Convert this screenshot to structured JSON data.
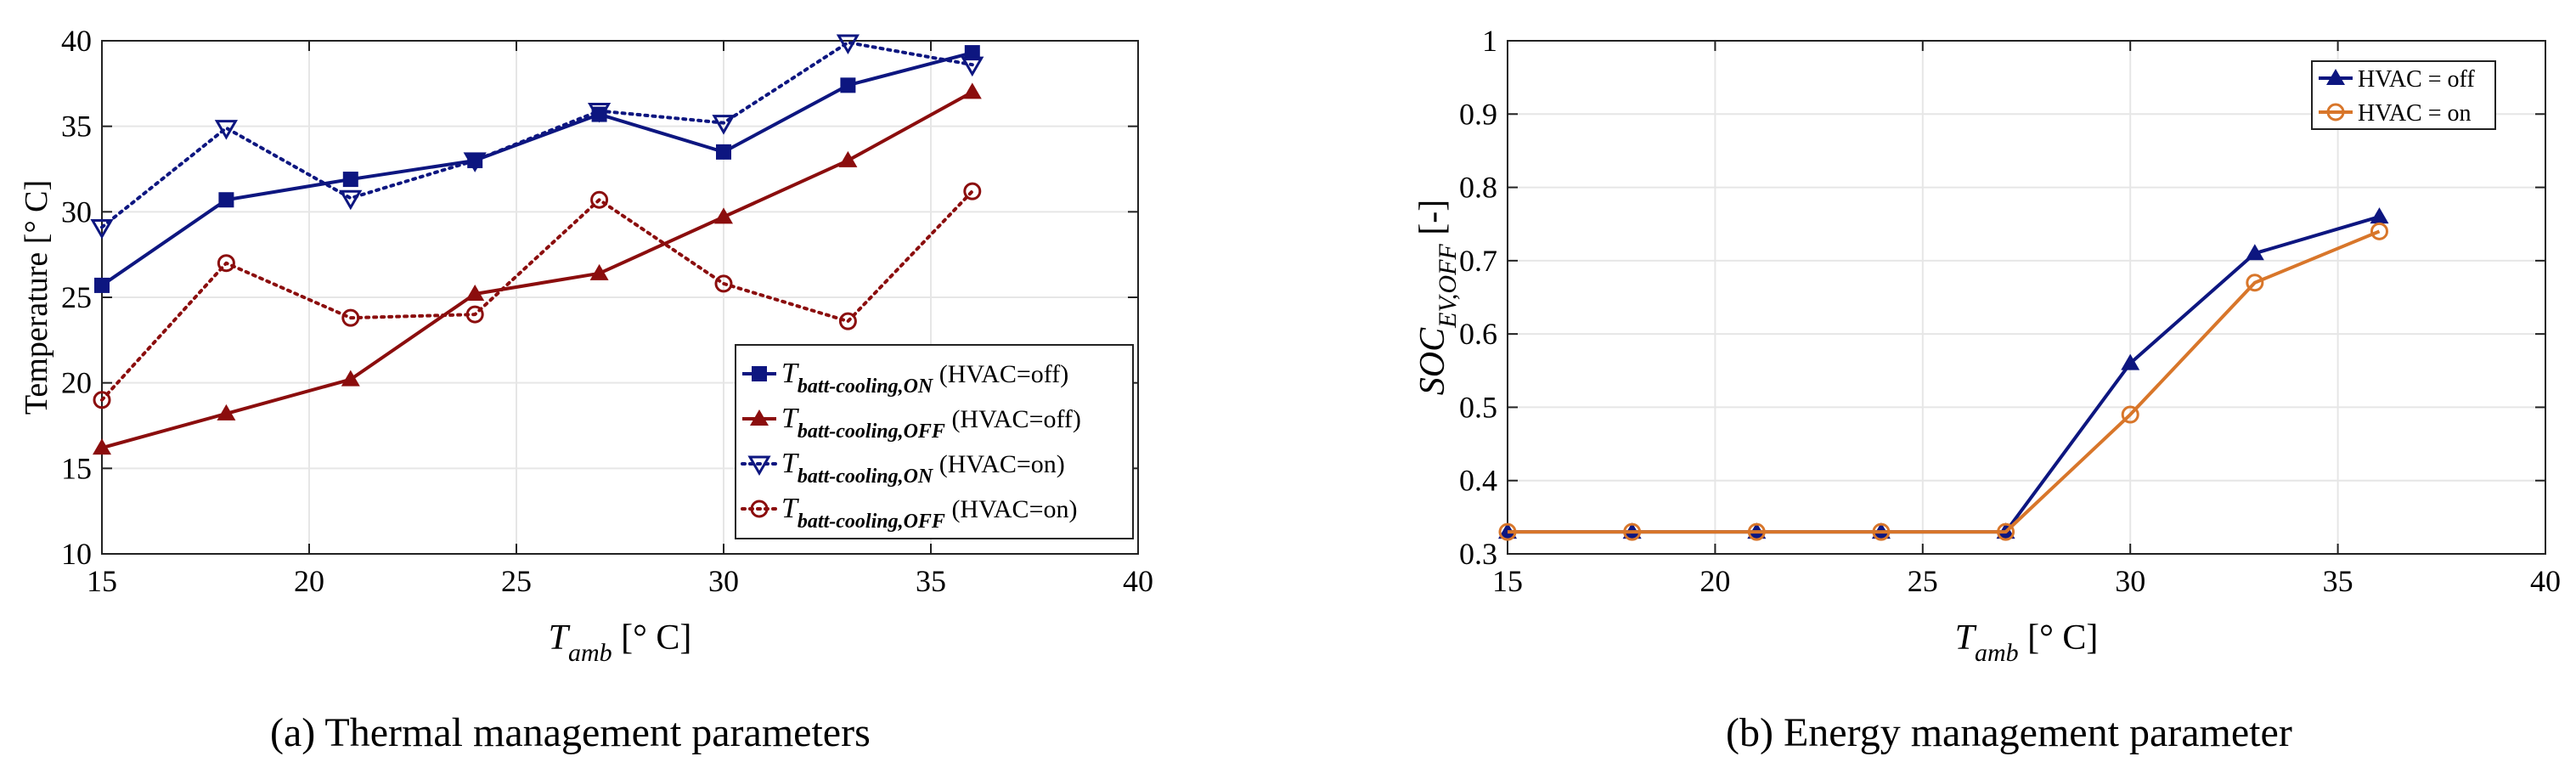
{
  "chart_data": [
    {
      "type": "line",
      "caption": "(a) Thermal management parameters",
      "xlabel": {
        "main": "T",
        "sub": "amb",
        "unit": " [° C]"
      },
      "ylabel": "Temperature [° C]",
      "xlim": [
        15,
        40
      ],
      "ylim": [
        10,
        40
      ],
      "xticks": [
        "15",
        "20",
        "25",
        "30",
        "35",
        "40"
      ],
      "yticks": [
        "10",
        "15",
        "20",
        "25",
        "30",
        "35",
        "40"
      ],
      "grid": true,
      "legend_position": "bottom-right",
      "x": [
        15,
        18,
        21,
        24,
        27,
        30,
        33,
        36
      ],
      "series": [
        {
          "name_main": "T",
          "name_sub": "batt-cooling,ON",
          "name_suffix": " (HVAC=off)",
          "color": "#0d1680",
          "marker": "square",
          "dash": "solid",
          "values": [
            25.7,
            30.7,
            31.9,
            33.0,
            35.7,
            33.5,
            37.4,
            39.3
          ]
        },
        {
          "name_main": "T",
          "name_sub": "batt-cooling,OFF",
          "name_suffix": " (HVAC=off)",
          "color": "#8b0d0d",
          "marker": "triangle-up",
          "dash": "solid",
          "values": [
            16.2,
            18.2,
            20.2,
            25.2,
            26.4,
            29.7,
            33.0,
            37.0
          ]
        },
        {
          "name_main": "T",
          "name_sub": "batt-cooling,ON",
          "name_suffix": " (HVAC=on)",
          "color": "#0d1680",
          "marker": "triangle-down",
          "dash": "dotted",
          "values": [
            29.1,
            34.9,
            30.8,
            33.0,
            35.9,
            35.2,
            39.9,
            38.6
          ]
        },
        {
          "name_main": "T",
          "name_sub": "batt-cooling,OFF",
          "name_suffix": " (HVAC=on)",
          "color": "#8b0d0d",
          "marker": "circle",
          "dash": "dotted",
          "values": [
            19.0,
            27.0,
            23.8,
            24.0,
            30.7,
            25.8,
            23.6,
            31.2
          ]
        }
      ]
    },
    {
      "type": "line",
      "caption": "(b) Energy management parameter",
      "xlabel": {
        "main": "T",
        "sub": "amb",
        "unit": " [° C]"
      },
      "ylabel": {
        "main": "SOC",
        "sub": "EV,OFF",
        "unit": " [-]"
      },
      "xlim": [
        15,
        40
      ],
      "ylim": [
        0.3,
        1.0
      ],
      "xticks": [
        "15",
        "20",
        "25",
        "30",
        "35",
        "40"
      ],
      "yticks": [
        "0.3",
        "0.4",
        "0.5",
        "0.6",
        "0.7",
        "0.8",
        "0.9",
        "1"
      ],
      "grid": true,
      "legend_position": "top-right",
      "x": [
        15,
        18,
        21,
        24,
        27,
        30,
        33,
        36
      ],
      "series": [
        {
          "name": "HVAC = off",
          "color": "#0d1680",
          "marker": "triangle-up",
          "dash": "solid",
          "values": [
            0.33,
            0.33,
            0.33,
            0.33,
            0.33,
            0.56,
            0.71,
            0.76
          ]
        },
        {
          "name": "HVAC = on",
          "color": "#d8762a",
          "marker": "circle",
          "dash": "solid",
          "values": [
            0.33,
            0.33,
            0.33,
            0.33,
            0.33,
            0.49,
            0.67,
            0.74
          ]
        }
      ]
    }
  ]
}
